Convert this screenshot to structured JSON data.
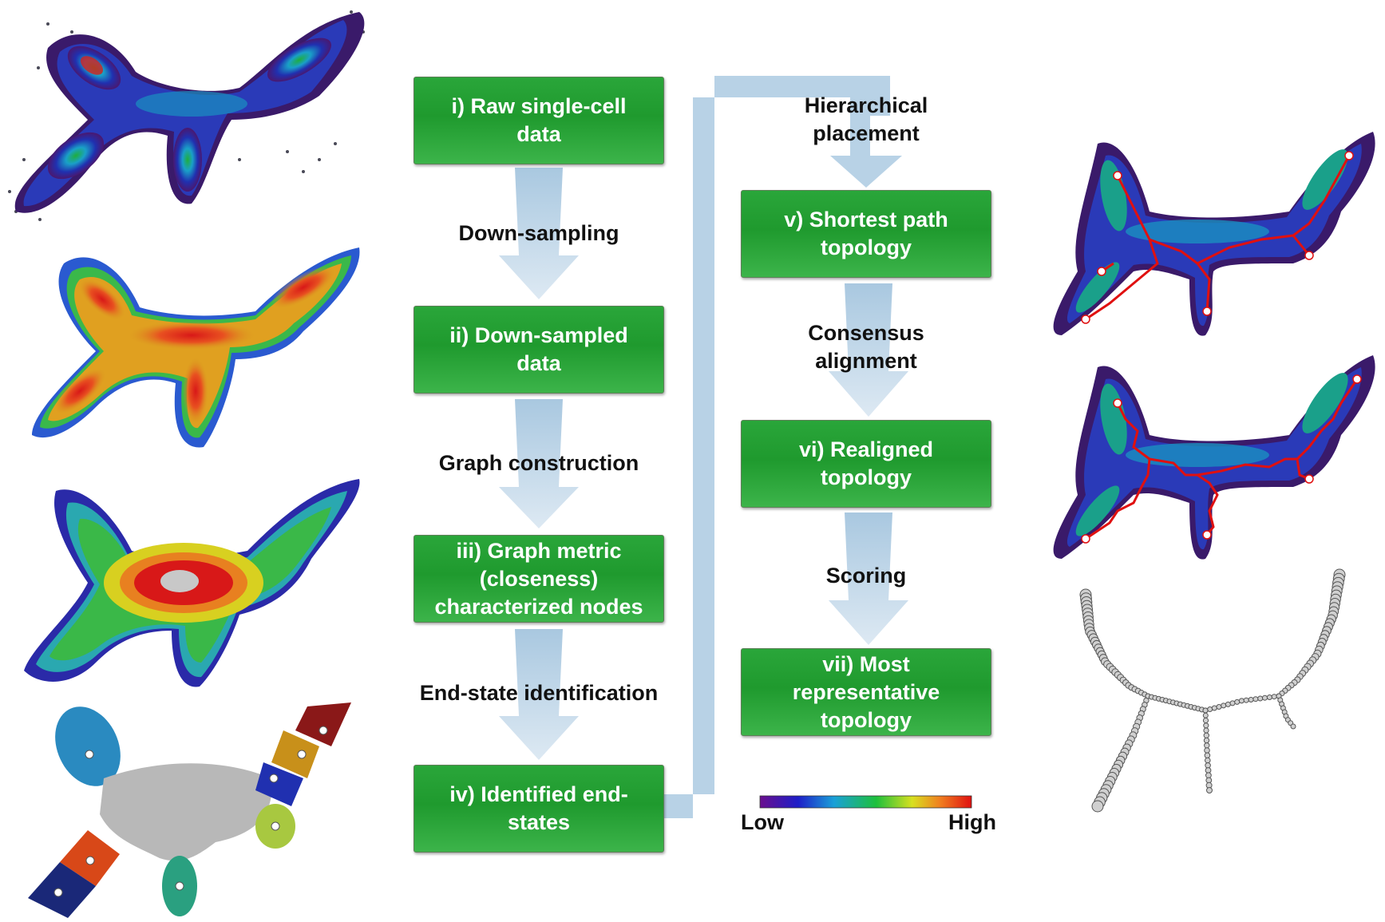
{
  "steps": {
    "s1": "i) Raw single-cell\ndata",
    "s2": "ii) Down-sampled\ndata",
    "s3": "iii) Graph metric\n(closeness)\ncharacterized nodes",
    "s4": "iv) Identified end-\nstates",
    "s5": "v) Shortest path\ntopology",
    "s6": "vi) Realigned\ntopology",
    "s7": "vii) Most\nrepresentative\ntopology"
  },
  "transitions": {
    "t1": "Down-sampling",
    "t2": "Graph construction",
    "t3": "End-state identification",
    "t4": "Hierarchical\nplacement",
    "t5": "Consensus\nalignment",
    "t6": "Scoring"
  },
  "colorbar": {
    "low": "Low",
    "high": "High",
    "colors": [
      "#6a0f8e",
      "#1e1ec8",
      "#1aa0d8",
      "#1ec03c",
      "#d8e020",
      "#f08020",
      "#e01010"
    ]
  },
  "colors": {
    "box_green": "#1f9a2e",
    "arrow_blue": "#b3cfe3",
    "path_red": "#e01010"
  }
}
